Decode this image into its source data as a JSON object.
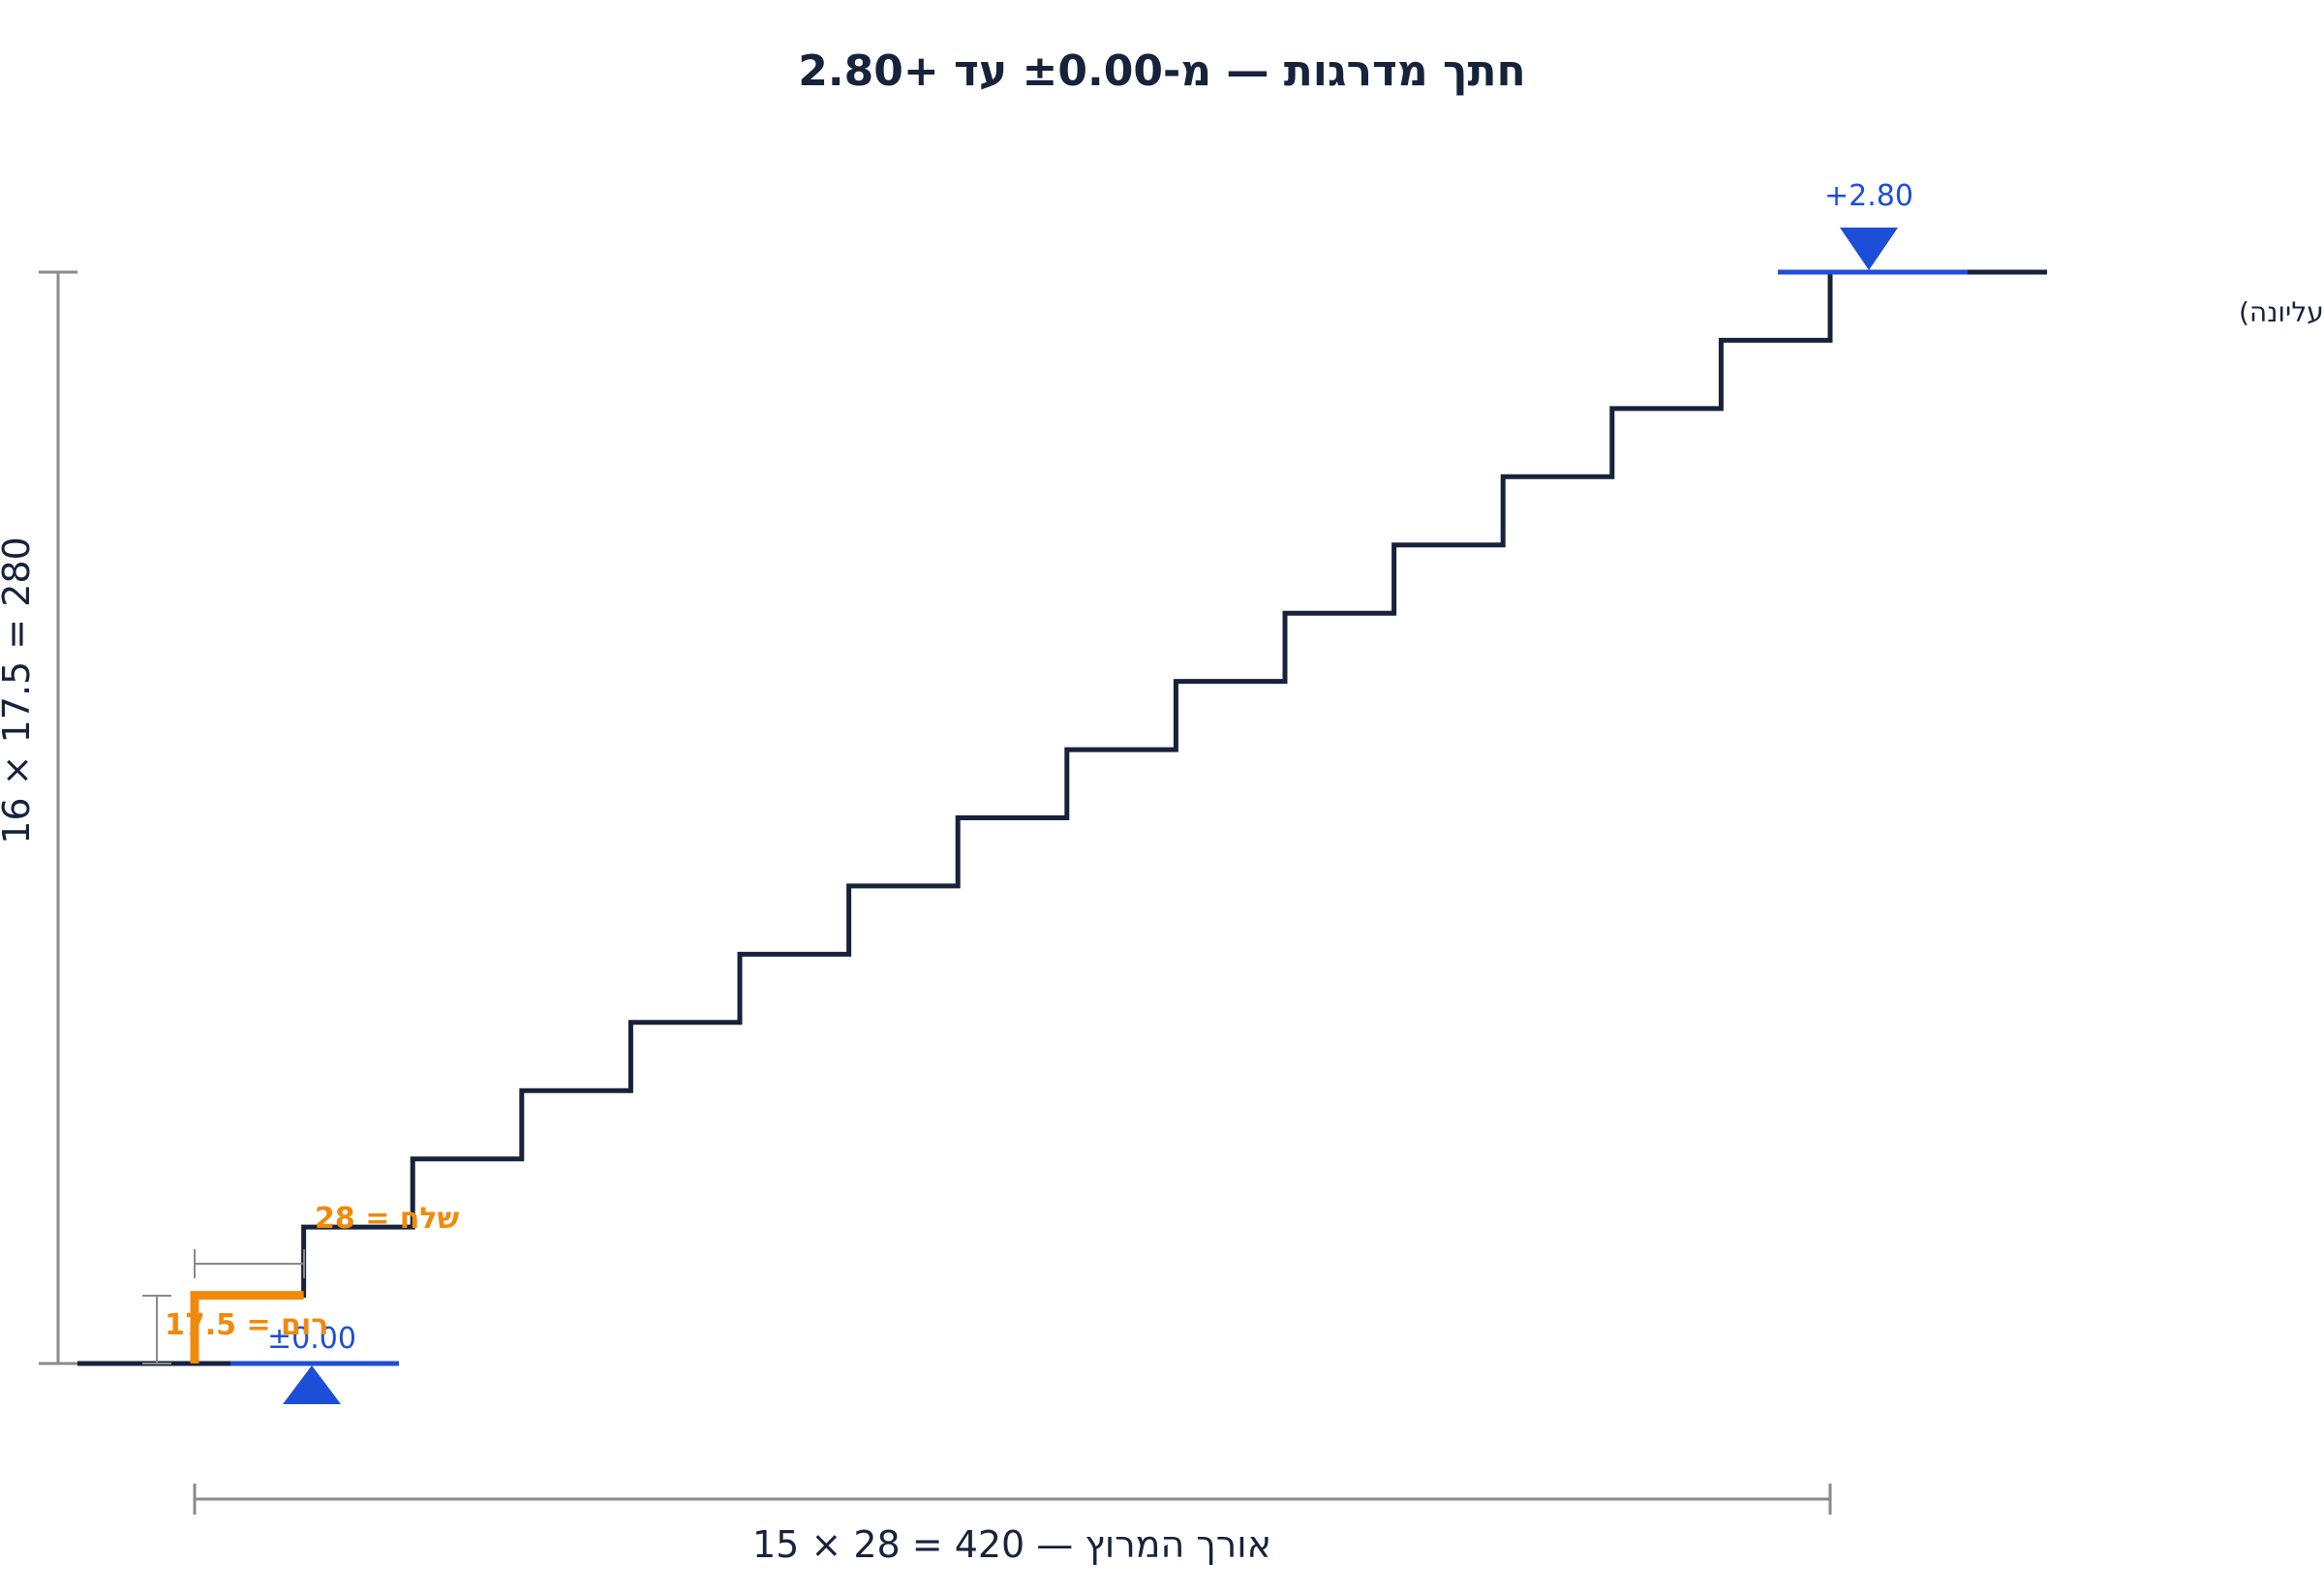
{
  "title": "חתך מדרגות — מ-±0.00 עד +2.80",
  "levels": {
    "bottom": "±0.00",
    "top": "+2.80"
  },
  "landing_label": "פודסט (הקומה העליונה)",
  "step": {
    "tread_label": "שלח = 28",
    "riser_label": "רום = 17.5"
  },
  "dimensions": {
    "run_label": "אורך המרוץ — 420 = 28 × 15",
    "height_label": "16 × 17.5 = 280"
  },
  "stair": {
    "risers": 16,
    "treads": 15,
    "riser_cm": 17.5,
    "tread_cm": 28,
    "total_height_cm": 280,
    "total_run_cm": 420
  },
  "colors": {
    "stair": "#17223b",
    "level": "#1d4ed8",
    "highlight": "#f08a0c",
    "dimension": "#8a8a8a"
  }
}
